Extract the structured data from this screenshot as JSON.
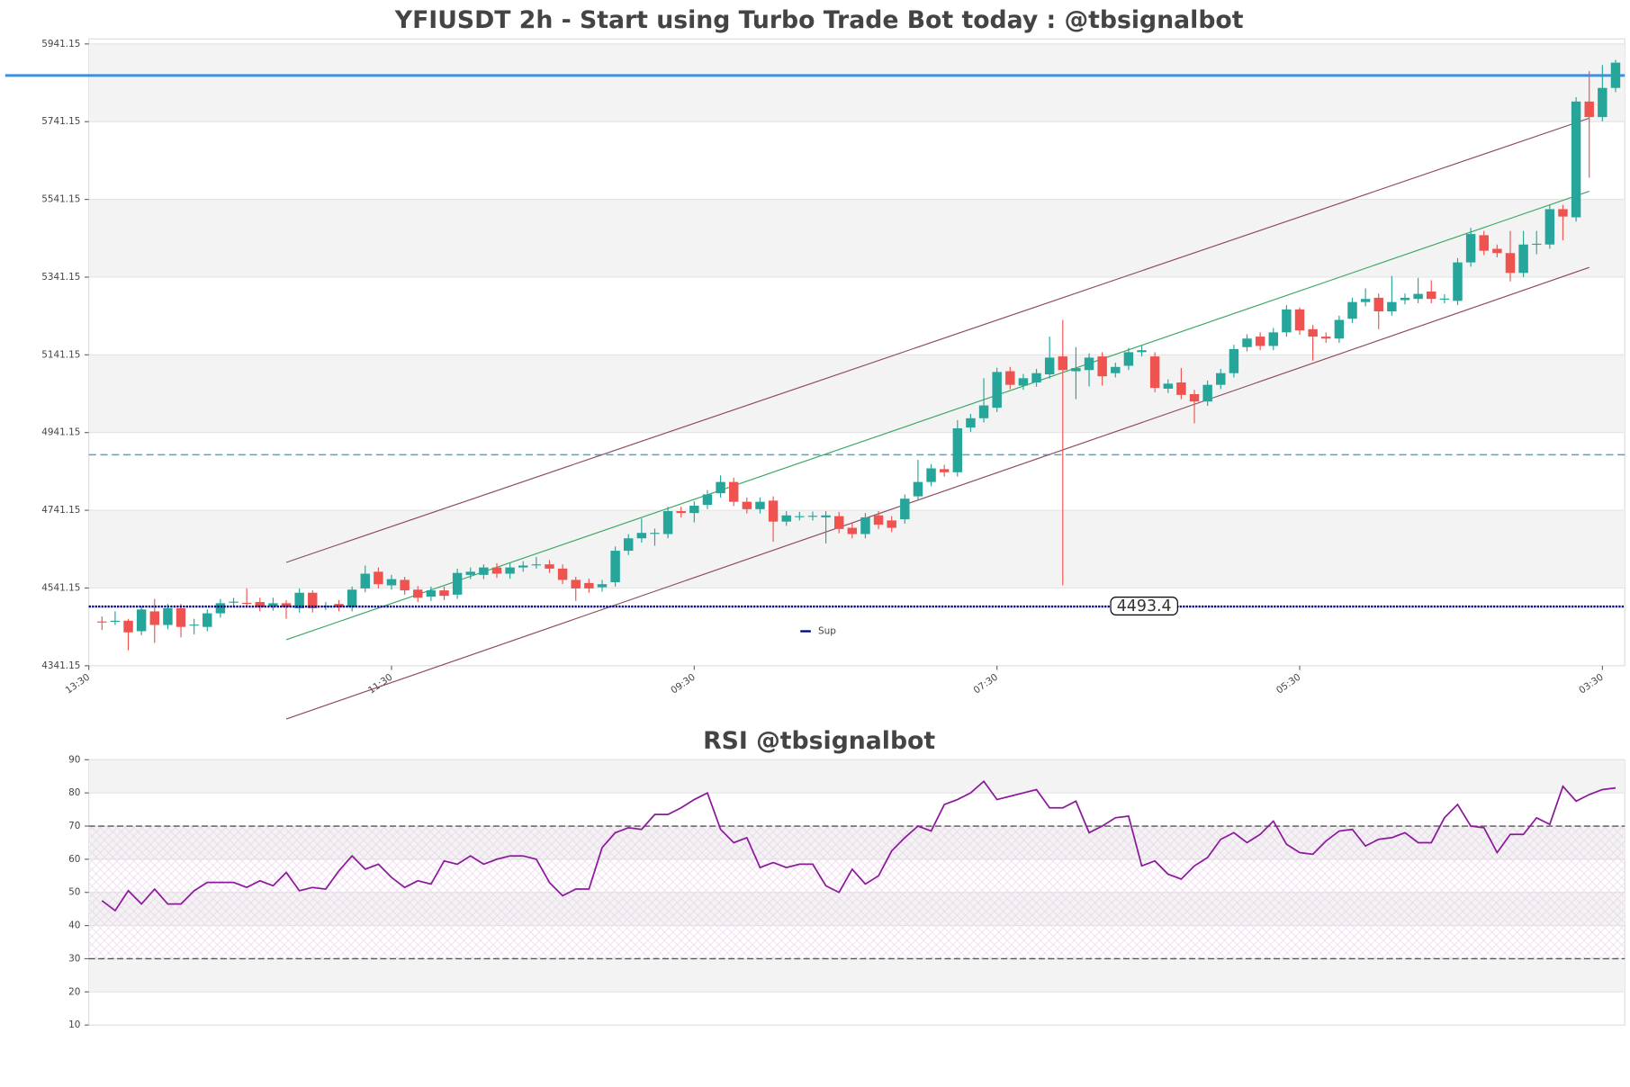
{
  "chart_data": [
    {
      "type": "candlestick",
      "title": "YFIUSDT 2h - Start using Turbo Trade Bot today : @tbsignalbot",
      "up_color": "#26a69a",
      "down_color": "#ef5350",
      "open": [
        4455,
        4455,
        4457,
        4430,
        4481,
        4446,
        4489,
        4446,
        4441,
        4476,
        4504,
        4503,
        4505,
        4494,
        4502,
        4489,
        4529,
        4494,
        4500,
        4492,
        4540,
        4583,
        4548,
        4562,
        4537,
        4519,
        4535,
        4524,
        4575,
        4575,
        4594,
        4578,
        4594,
        4601,
        4602,
        4591,
        4562,
        4554,
        4543,
        4556,
        4637,
        4669,
        4682,
        4680,
        4739,
        4734,
        4755,
        4785,
        4814,
        4763,
        4744,
        4766,
        4712,
        4725,
        4726,
        4723,
        4726,
        4696,
        4680,
        4728,
        4715,
        4718,
        4777,
        4814,
        4847,
        4839,
        4954,
        4978,
        5005,
        5099,
        5062,
        5070,
        5091,
        5137,
        5099,
        5102,
        5137,
        5094,
        5113,
        5148,
        5137,
        5054,
        5070,
        5040,
        5021,
        5064,
        5094,
        5161,
        5188,
        5164,
        5199,
        5258,
        5207,
        5188,
        5183,
        5234,
        5277,
        5288,
        5253,
        5282,
        5285,
        5304,
        5285,
        5280,
        5379,
        5449,
        5414,
        5403,
        5352,
        5426,
        5425,
        5516,
        5495,
        5793,
        5753,
        5828
      ],
      "high": [
        4468,
        4481,
        4462,
        4494,
        4513,
        4500,
        4500,
        4462,
        4486,
        4513,
        4516,
        4540,
        4516,
        4516,
        4510,
        4540,
        4535,
        4505,
        4510,
        4545,
        4599,
        4594,
        4575,
        4570,
        4546,
        4545,
        4545,
        4591,
        4594,
        4602,
        4605,
        4605,
        4610,
        4621,
        4613,
        4602,
        4570,
        4565,
        4562,
        4648,
        4680,
        4720,
        4694,
        4750,
        4750,
        4764,
        4793,
        4831,
        4825,
        4774,
        4774,
        4777,
        4739,
        4737,
        4738,
        4739,
        4737,
        4707,
        4734,
        4739,
        4726,
        4782,
        4871,
        4860,
        4858,
        4973,
        4989,
        5081,
        5108,
        5110,
        5092,
        5105,
        5188,
        5231,
        5161,
        5145,
        5148,
        5121,
        5159,
        5164,
        5148,
        5078,
        5107,
        5051,
        5075,
        5105,
        5167,
        5194,
        5199,
        5210,
        5269,
        5263,
        5218,
        5199,
        5242,
        5288,
        5312,
        5299,
        5344,
        5299,
        5339,
        5333,
        5297,
        5390,
        5468,
        5460,
        5425,
        5460,
        5460,
        5460,
        5527,
        5527,
        5804,
        5871,
        5887,
        5900
      ],
      "low": [
        4433,
        4446,
        4381,
        4420,
        4400,
        4435,
        4414,
        4422,
        4430,
        4465,
        4494,
        4492,
        4481,
        4483,
        4462,
        4478,
        4478,
        4484,
        4481,
        4481,
        4530,
        4540,
        4537,
        4524,
        4505,
        4508,
        4510,
        4513,
        4564,
        4564,
        4567,
        4565,
        4583,
        4591,
        4580,
        4551,
        4508,
        4529,
        4532,
        4545,
        4626,
        4658,
        4650,
        4669,
        4723,
        4710,
        4744,
        4774,
        4752,
        4733,
        4733,
        4660,
        4701,
        4715,
        4715,
        4656,
        4682,
        4669,
        4669,
        4693,
        4685,
        4707,
        4766,
        4803,
        4828,
        4828,
        4943,
        4967,
        4994,
        5053,
        5051,
        5059,
        5080,
        4548,
        5027,
        5060,
        5062,
        5083,
        5102,
        5137,
        5045,
        5043,
        5027,
        4965,
        5010,
        5053,
        5083,
        5150,
        5153,
        5153,
        5188,
        5193,
        5126,
        5172,
        5172,
        5223,
        5266,
        5207,
        5242,
        5271,
        5274,
        5274,
        5274,
        5269,
        5368,
        5398,
        5392,
        5330,
        5341,
        5400,
        5414,
        5436,
        5484,
        5597,
        5742,
        5817
      ],
      "close": [
        4453,
        4457,
        4427,
        4486,
        4446,
        4489,
        4441,
        4447,
        4476,
        4502,
        4506,
        4502,
        4492,
        4502,
        4492,
        4529,
        4489,
        4495,
        4492,
        4537,
        4578,
        4551,
        4564,
        4535,
        4516,
        4535,
        4521,
        4580,
        4583,
        4594,
        4578,
        4594,
        4599,
        4602,
        4591,
        4562,
        4540,
        4540,
        4551,
        4637,
        4669,
        4683,
        4683,
        4739,
        4734,
        4753,
        4782,
        4814,
        4763,
        4744,
        4763,
        4712,
        4728,
        4726,
        4727,
        4728,
        4693,
        4680,
        4723,
        4704,
        4696,
        4771,
        4814,
        4849,
        4839,
        4952,
        4978,
        5011,
        5097,
        5064,
        5081,
        5094,
        5134,
        5102,
        5107,
        5134,
        5086,
        5110,
        5148,
        5153,
        5056,
        5067,
        5038,
        5021,
        5064,
        5094,
        5156,
        5183,
        5164,
        5199,
        5258,
        5204,
        5188,
        5183,
        5231,
        5277,
        5285,
        5253,
        5277,
        5288,
        5298,
        5285,
        5286,
        5379,
        5452,
        5409,
        5403,
        5352,
        5425,
        5427,
        5516,
        5497,
        5793,
        5753,
        5828,
        5893
      ],
      "ylim": [
        4341.15,
        5954
      ],
      "yticks": [
        4341.15,
        4541.15,
        4741.15,
        4941.15,
        5141.15,
        5341.15,
        5541.15,
        5741.15,
        5941.15
      ],
      "xlim": [
        -1,
        115.7
      ],
      "xticks": [
        {
          "value": -1,
          "label": "13:30"
        },
        {
          "value": 22,
          "label": "11:30"
        },
        {
          "value": 45,
          "label": "09:30"
        },
        {
          "value": 68,
          "label": "07:30"
        },
        {
          "value": 91,
          "label": "05:30"
        },
        {
          "value": 114,
          "label": "03:30"
        }
      ],
      "hlines": [
        {
          "value": 5860,
          "color": "#3d8fe0",
          "dashed": false
        },
        {
          "value": 4884,
          "color": "#4aa8c8",
          "dashed": true
        }
      ],
      "levels": [
        {
          "name": "Sup",
          "value": 4493.4,
          "color": "#00008b"
        }
      ],
      "trendlines": [
        {
          "x": [
            14,
            113
          ],
          "y": [
            4607,
            5750
          ],
          "color": "#8b4a5a"
        },
        {
          "x": [
            14,
            113
          ],
          "y": [
            4408,
            5562
          ],
          "color": "#3aa860"
        },
        {
          "x": [
            14,
            113
          ],
          "y": [
            4204,
            5366
          ],
          "color": "#8b4a5a"
        }
      ]
    },
    {
      "type": "line",
      "title": "RSI @tbsignalbot",
      "series": [
        {
          "color": "#8b1a9b",
          "values": [
            47.5,
            44.5,
            50.5,
            46.5,
            51,
            46.5,
            46.5,
            50.5,
            53,
            53,
            53,
            51.5,
            53.5,
            52,
            56,
            50.5,
            51.5,
            51,
            56.5,
            61,
            57,
            58.5,
            54.5,
            51.5,
            53.5,
            52.5,
            59.5,
            58.5,
            61,
            58.5,
            60,
            61,
            61,
            60,
            53,
            49,
            51,
            51,
            63.5,
            68,
            69.5,
            69,
            73.5,
            73.5,
            75.5,
            78,
            80,
            69,
            65,
            66.5,
            57.5,
            59,
            57.5,
            58.5,
            58.5,
            52,
            50,
            57,
            52.5,
            55,
            62.5,
            66.5,
            70,
            68.5,
            76.5,
            78,
            80,
            83.5,
            78,
            79,
            80,
            81,
            75.5,
            75.5,
            77.5,
            68,
            70,
            72.5,
            73,
            58,
            59.5,
            55.5,
            54,
            58,
            60.5,
            66,
            68,
            65,
            67.5,
            71.5,
            64.5,
            62,
            61.5,
            65.5,
            68.5,
            69,
            64,
            66,
            66.5,
            68,
            65,
            65,
            72.5,
            76.5,
            70,
            69.5,
            62,
            67.5,
            67.5,
            72.5,
            70.5,
            82,
            77.5,
            79.5,
            81,
            81.5
          ]
        }
      ],
      "ylim": [
        10,
        90
      ],
      "yticks": [
        10,
        20,
        30,
        40,
        50,
        60,
        70,
        80,
        90
      ],
      "xlim": [
        -1,
        115.7
      ],
      "hlines": [
        70,
        30
      ]
    }
  ]
}
